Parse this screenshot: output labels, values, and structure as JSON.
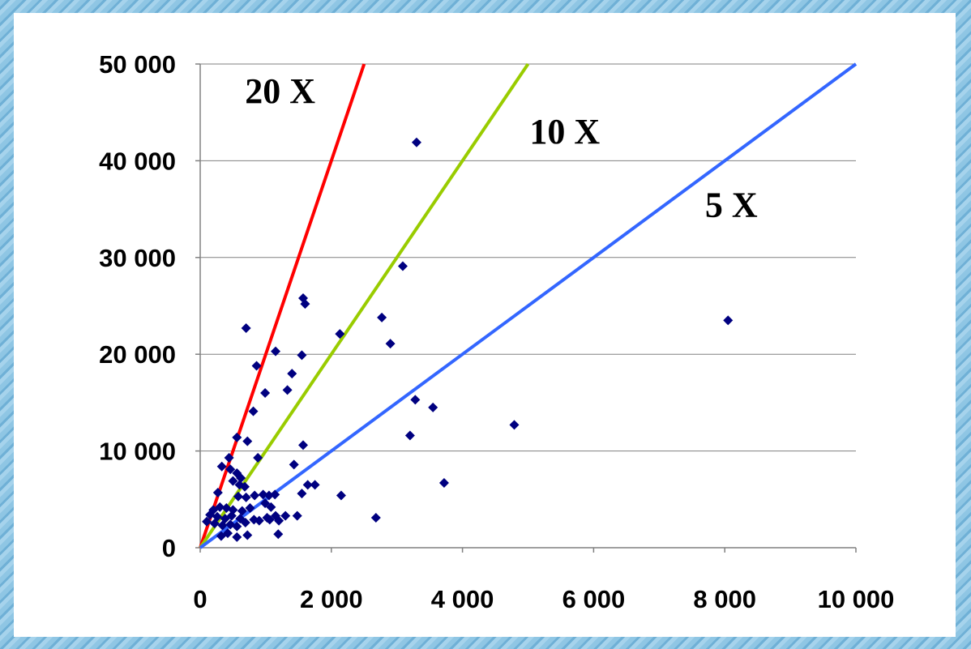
{
  "chart_data": {
    "type": "scatter",
    "title": "",
    "xlabel": "",
    "ylabel": "",
    "xlim": [
      0,
      10000
    ],
    "ylim": [
      0,
      50000
    ],
    "x_ticks": [
      0,
      2000,
      4000,
      6000,
      8000,
      10000
    ],
    "x_tick_labels": [
      "0",
      "2 000",
      "4 000",
      "6 000",
      "8 000",
      "10 000"
    ],
    "y_ticks": [
      0,
      10000,
      20000,
      30000,
      40000,
      50000
    ],
    "y_tick_labels": [
      "0",
      "10 000",
      "20 000",
      "30 000",
      "40 000",
      "50 000"
    ],
    "grid": "horizontal",
    "colors": {
      "points": "#000080",
      "line_20x": "#ff0000",
      "line_10x": "#99cc00",
      "line_5x": "#3366ff",
      "grid": "#808080",
      "axis": "#808080"
    },
    "reference_lines": [
      {
        "label": "20 X",
        "slope": 20,
        "x_end": 2500,
        "color": "#ff0000"
      },
      {
        "label": "10 X",
        "slope": 10,
        "x_end": 5000,
        "color": "#99cc00"
      },
      {
        "label": "5 X",
        "slope": 5,
        "x_end": 10000,
        "color": "#3366ff"
      }
    ],
    "line_labels": [
      {
        "text": "20 X",
        "x": 1220,
        "y": 46000
      },
      {
        "text": "10 X",
        "x": 5560,
        "y": 41800
      },
      {
        "text": "5 X",
        "x": 8100,
        "y": 34200
      }
    ],
    "points": [
      [
        3300,
        41900
      ],
      [
        8050,
        23500
      ],
      [
        700,
        22700
      ],
      [
        1570,
        25800
      ],
      [
        1600,
        25200
      ],
      [
        2770,
        23800
      ],
      [
        3090,
        29100
      ],
      [
        2130,
        22100
      ],
      [
        2900,
        21100
      ],
      [
        1150,
        20300
      ],
      [
        1550,
        19900
      ],
      [
        860,
        18800
      ],
      [
        1400,
        18000
      ],
      [
        1330,
        16300
      ],
      [
        990,
        16000
      ],
      [
        810,
        14100
      ],
      [
        3280,
        15300
      ],
      [
        3550,
        14500
      ],
      [
        4790,
        12700
      ],
      [
        3200,
        11600
      ],
      [
        560,
        11400
      ],
      [
        720,
        11000
      ],
      [
        1570,
        10600
      ],
      [
        880,
        9300
      ],
      [
        440,
        9300
      ],
      [
        330,
        8400
      ],
      [
        460,
        8100
      ],
      [
        560,
        7700
      ],
      [
        620,
        7200
      ],
      [
        1430,
        8600
      ],
      [
        500,
        6900
      ],
      [
        600,
        6500
      ],
      [
        680,
        6300
      ],
      [
        3720,
        6700
      ],
      [
        1640,
        6500
      ],
      [
        1750,
        6500
      ],
      [
        1550,
        5600
      ],
      [
        2150,
        5400
      ],
      [
        1140,
        5500
      ],
      [
        1050,
        5400
      ],
      [
        960,
        5500
      ],
      [
        830,
        5400
      ],
      [
        700,
        5200
      ],
      [
        580,
        5300
      ],
      [
        270,
        5700
      ],
      [
        990,
        4600
      ],
      [
        1080,
        4200
      ],
      [
        760,
        4100
      ],
      [
        640,
        3800
      ],
      [
        500,
        3900
      ],
      [
        400,
        4100
      ],
      [
        300,
        4200
      ],
      [
        200,
        3900
      ],
      [
        150,
        3400
      ],
      [
        260,
        3200
      ],
      [
        380,
        3000
      ],
      [
        480,
        3300
      ],
      [
        610,
        3000
      ],
      [
        820,
        2900
      ],
      [
        1020,
        3100
      ],
      [
        1150,
        3300
      ],
      [
        1300,
        3300
      ],
      [
        1480,
        3300
      ],
      [
        2680,
        3100
      ],
      [
        1200,
        2800
      ],
      [
        100,
        2700
      ],
      [
        220,
        2500
      ],
      [
        340,
        2300
      ],
      [
        460,
        2400
      ],
      [
        560,
        2200
      ],
      [
        690,
        2600
      ],
      [
        900,
        2800
      ],
      [
        1060,
        2900
      ],
      [
        420,
        1500
      ],
      [
        560,
        1100
      ],
      [
        720,
        1300
      ],
      [
        1190,
        1400
      ],
      [
        320,
        1200
      ]
    ]
  }
}
